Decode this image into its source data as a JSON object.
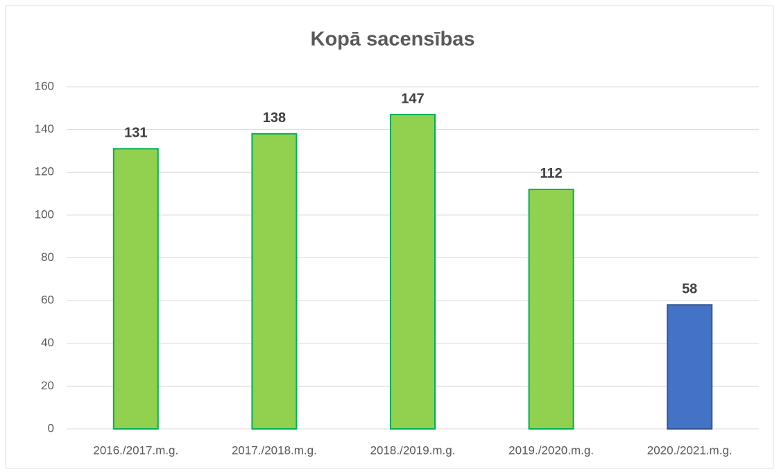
{
  "chart_data": {
    "type": "bar",
    "title": "Kopā sacensības",
    "categories": [
      "2016./2017.m.g.",
      "2017./2018.m.g.",
      "2018./2019.m.g.",
      "2019./2020.m.g.",
      "2020./2021.m.g."
    ],
    "values": [
      131,
      138,
      147,
      112,
      58
    ],
    "colors": [
      "#92d050",
      "#92d050",
      "#92d050",
      "#92d050",
      "#4472c4"
    ],
    "edgecolors": [
      "#00b050",
      "#00b050",
      "#00b050",
      "#00b050",
      "#2f5597"
    ],
    "ylim": [
      0,
      160
    ],
    "yticks": [
      0,
      20,
      40,
      60,
      80,
      100,
      120,
      140,
      160
    ],
    "grid": true,
    "data_labels": true
  }
}
